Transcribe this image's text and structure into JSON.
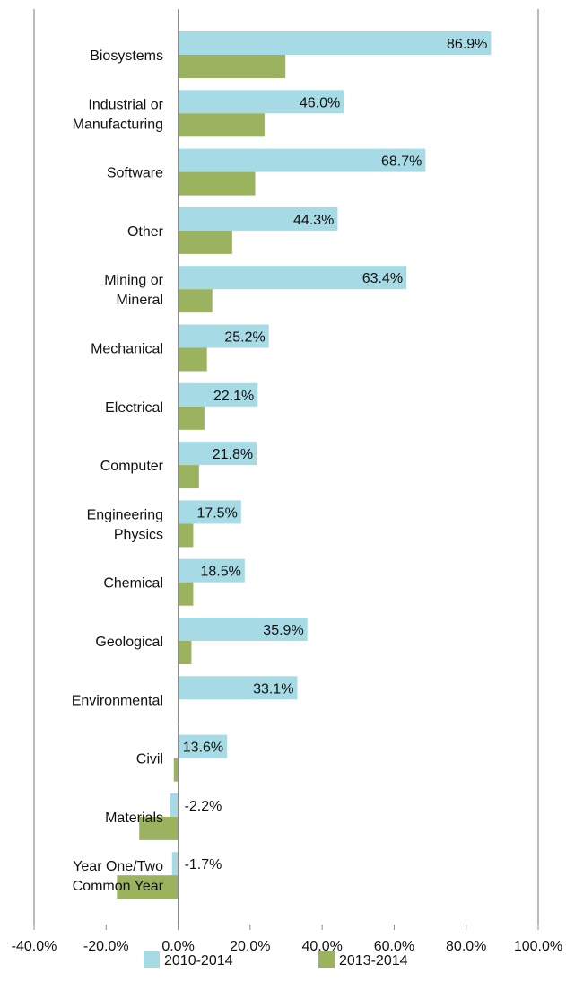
{
  "chart_data": {
    "type": "bar",
    "orientation": "horizontal",
    "title": "",
    "xlabel": "",
    "ylabel": "",
    "xlim": [
      -40,
      100
    ],
    "x_ticks": [
      -40,
      -20,
      0,
      20,
      40,
      60,
      80,
      100
    ],
    "x_tick_labels": [
      "-40.0%",
      "-20.0%",
      "0.0%",
      "20.0%",
      "40.0%",
      "60.0%",
      "80.0%",
      "100.0%"
    ],
    "grid": false,
    "legend_position": "bottom",
    "categories": [
      [
        "Biosystems"
      ],
      [
        "Industrial or",
        "Manufacturing"
      ],
      [
        "Software"
      ],
      [
        "Other"
      ],
      [
        "Mining or",
        "Mineral"
      ],
      [
        "Mechanical"
      ],
      [
        "Electrical"
      ],
      [
        "Computer"
      ],
      [
        "Engineering",
        "Physics"
      ],
      [
        "Chemical"
      ],
      [
        "Geological"
      ],
      [
        "Environmental"
      ],
      [
        "Civil"
      ],
      [
        "Materials"
      ],
      [
        "Year One/Two",
        "Common Year"
      ]
    ],
    "series": [
      {
        "name": "2010-2014",
        "color": "#a6dbe6",
        "values": [
          86.9,
          46.0,
          68.7,
          44.3,
          63.4,
          25.2,
          22.1,
          21.8,
          17.5,
          18.5,
          35.9,
          33.1,
          13.6,
          -2.2,
          -1.7
        ],
        "labels": [
          "86.9%",
          "46.0%",
          "68.7%",
          "44.3%",
          "63.4%",
          "25.2%",
          "22.1%",
          "21.8%",
          "17.5%",
          "18.5%",
          "35.9%",
          "33.1%",
          "13.6%",
          "-2.2%",
          "-1.7%"
        ]
      },
      {
        "name": "2013-2014",
        "color": "#9bb25f",
        "values": [
          29.8,
          24.0,
          21.4,
          15.0,
          9.5,
          8.0,
          7.3,
          5.8,
          4.2,
          4.2,
          3.7,
          0.2,
          -1.2,
          -10.8,
          -17.0
        ]
      }
    ]
  }
}
